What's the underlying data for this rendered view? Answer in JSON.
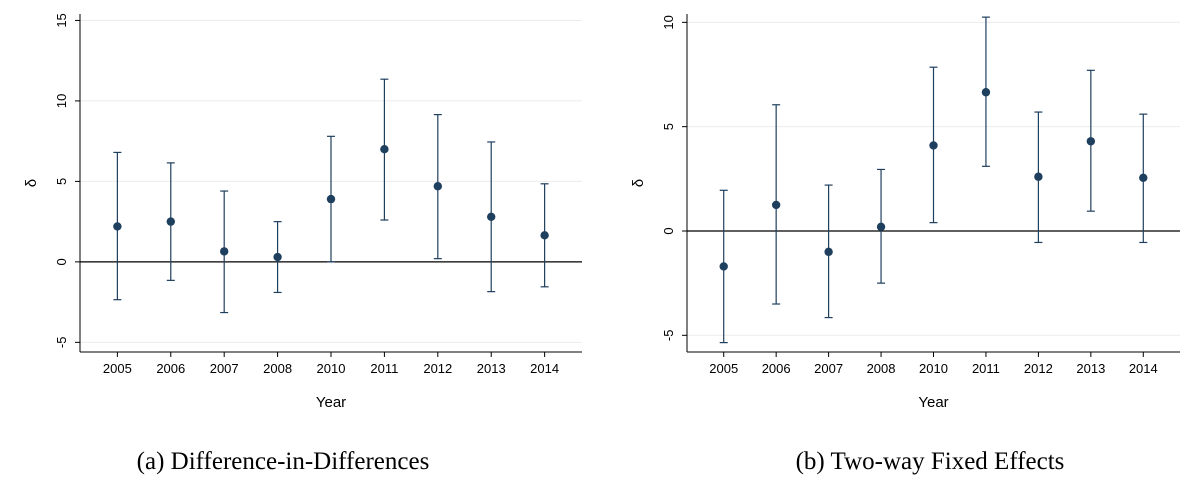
{
  "chart_data": [
    {
      "type": "scatter",
      "caption": "(a) Difference-in-Differences",
      "xlabel": "Year",
      "ylabel": "δ",
      "categories": [
        "2005",
        "2006",
        "2007",
        "2008",
        "2010",
        "2011",
        "2012",
        "2013",
        "2014"
      ],
      "estimate": [
        2.2,
        2.5,
        0.65,
        0.3,
        3.9,
        7.0,
        4.7,
        2.8,
        1.65
      ],
      "ci_lower": [
        -2.35,
        -1.15,
        -3.15,
        -1.9,
        0.0,
        2.6,
        0.2,
        -1.85,
        -1.55
      ],
      "ci_upper": [
        6.8,
        6.15,
        4.4,
        2.5,
        7.8,
        11.35,
        9.15,
        7.45,
        4.85
      ],
      "yticks": [
        -5,
        0,
        5,
        10,
        15
      ],
      "ylim": [
        -5.6,
        15.4
      ],
      "reference_line": 0,
      "grid": true,
      "color": "#1f3f5e"
    },
    {
      "type": "scatter",
      "caption": "(b) Two-way Fixed Effects",
      "xlabel": "Year",
      "ylabel": "δ",
      "categories": [
        "2005",
        "2006",
        "2007",
        "2008",
        "2010",
        "2011",
        "2012",
        "2013",
        "2014"
      ],
      "estimate": [
        -1.7,
        1.25,
        -1.0,
        0.2,
        4.1,
        6.65,
        2.6,
        4.3,
        2.55
      ],
      "ci_lower": [
        -5.35,
        -3.5,
        -4.15,
        -2.5,
        0.4,
        3.1,
        -0.55,
        0.95,
        -0.55
      ],
      "ci_upper": [
        1.95,
        6.05,
        2.2,
        2.95,
        7.85,
        10.25,
        5.7,
        7.7,
        5.6
      ],
      "yticks": [
        -5,
        0,
        5,
        10
      ],
      "ylim": [
        -5.8,
        10.4
      ],
      "reference_line": 0,
      "grid": true,
      "color": "#1f3f5e"
    }
  ]
}
